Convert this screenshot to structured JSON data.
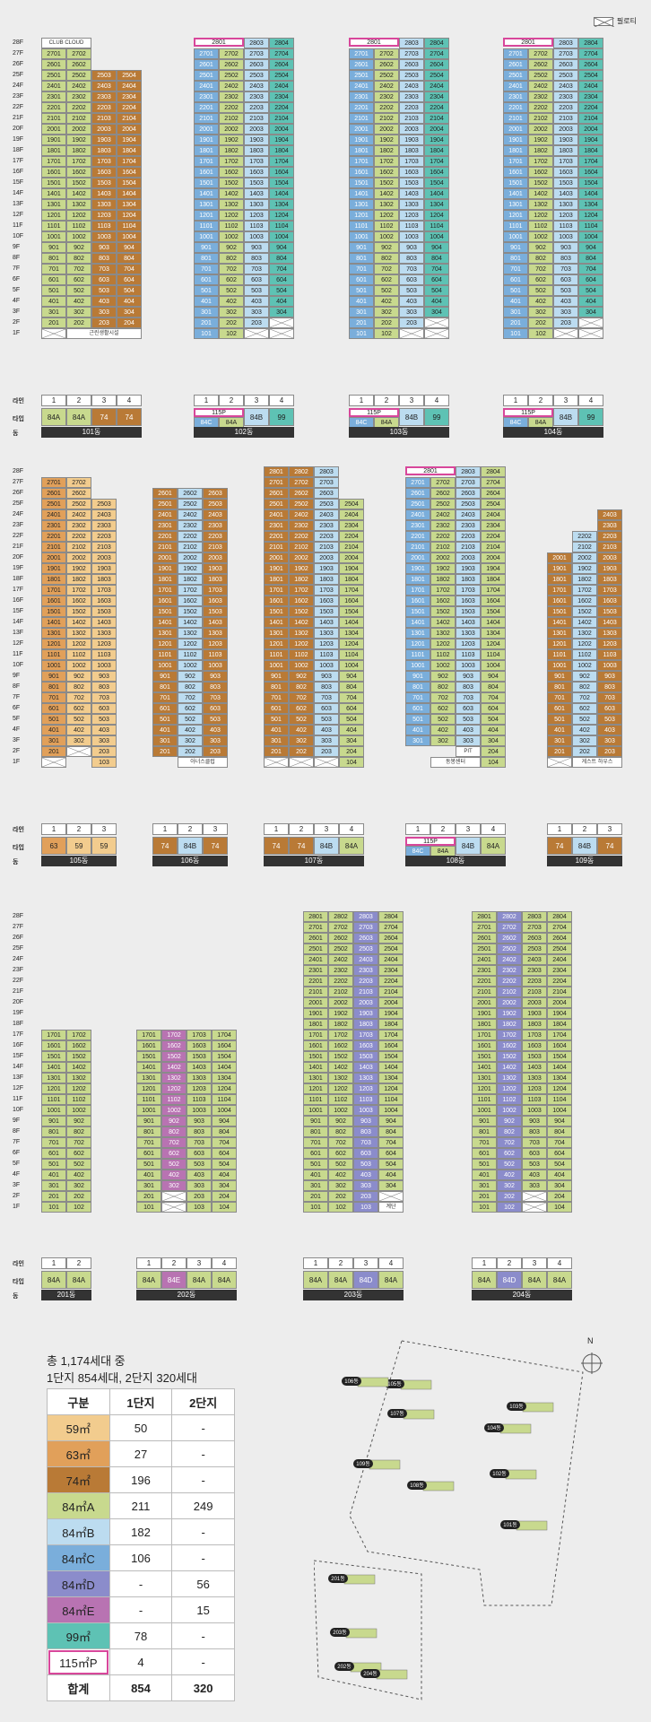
{
  "legend": {
    "pilotis": "필로티"
  },
  "colors": {
    "59": "#f2cc8e",
    "63": "#e1a05a",
    "74": "#b97a36",
    "84A": "#c8d98e",
    "84B": "#bcdcf0",
    "84C": "#7aaedb",
    "84D": "#8b8ccb",
    "84E": "#b873b2",
    "99": "#5ec2b4",
    "115P": "#d8479b"
  },
  "labels": {
    "line": "라인",
    "type": "타입",
    "dong": "동",
    "floor_suffix": "F"
  },
  "phase1_top": [
    {
      "dong": "101동",
      "lines": [
        "1",
        "2",
        "3",
        "4"
      ],
      "types": [
        "84A",
        "84A",
        "74",
        "74"
      ],
      "top": 28
    },
    {
      "dong": "102동",
      "lines": [
        "1",
        "2",
        "3",
        "4"
      ],
      "types": [
        "84C",
        "84A",
        "84B",
        "99"
      ],
      "special": "115P",
      "top": 28
    },
    {
      "dong": "103동",
      "lines": [
        "1",
        "2",
        "3",
        "4"
      ],
      "types": [
        "84C",
        "84A",
        "84B",
        "99"
      ],
      "special": "115P",
      "top": 28
    },
    {
      "dong": "104동",
      "lines": [
        "1",
        "2",
        "3",
        "4"
      ],
      "types": [
        "84C",
        "84A",
        "84B",
        "99"
      ],
      "special": "115P",
      "top": 28
    }
  ],
  "phase1_mid": [
    {
      "dong": "105동",
      "lines": [
        "1",
        "2",
        "3"
      ],
      "types": [
        "63",
        "59",
        "59"
      ]
    },
    {
      "dong": "106동",
      "lines": [
        "1",
        "2",
        "3"
      ],
      "types": [
        "74",
        "84B",
        "74"
      ]
    },
    {
      "dong": "107동",
      "lines": [
        "1",
        "2",
        "3",
        "4"
      ],
      "types": [
        "74",
        "74",
        "84B",
        "84A"
      ]
    },
    {
      "dong": "108동",
      "lines": [
        "1",
        "2",
        "3",
        "4"
      ],
      "types": [
        "84C",
        "84A",
        "84B",
        "84A"
      ],
      "special": "115P"
    },
    {
      "dong": "109동",
      "lines": [
        "1",
        "2",
        "3"
      ],
      "types": [
        "74",
        "84B",
        "74"
      ]
    }
  ],
  "phase2": [
    {
      "dong": "201동",
      "lines": [
        "1",
        "2"
      ],
      "types": [
        "84A",
        "84A"
      ]
    },
    {
      "dong": "202동",
      "lines": [
        "1",
        "2",
        "3",
        "4"
      ],
      "types": [
        "84A",
        "84E",
        "84A",
        "84A"
      ]
    },
    {
      "dong": "203동",
      "lines": [
        "1",
        "2",
        "3",
        "4"
      ],
      "types": [
        "84A",
        "84A",
        "84D",
        "84A"
      ]
    },
    {
      "dong": "204동",
      "lines": [
        "1",
        "2",
        "3",
        "4"
      ],
      "types": [
        "84A",
        "84D",
        "84A",
        "84A"
      ]
    }
  ],
  "special_units": {
    "b101": "CLUB CLOUD",
    "b101_2f": "근린생활시설",
    "b106": "아너스클럽",
    "b108_pit": "PIT",
    "b108_gym": "동봉센터",
    "b109": "게스트 하우스",
    "b203": "계단"
  },
  "summary": {
    "line1": "총 1,174세대 중",
    "line2": "1단지 854세대, 2단지 320세대"
  },
  "table": {
    "headers": [
      "구분",
      "1단지",
      "2단지"
    ],
    "rows": [
      {
        "type": "59㎡",
        "c1": "50",
        "c2": "-",
        "color": "#f2cc8e"
      },
      {
        "type": "63㎡",
        "c1": "27",
        "c2": "-",
        "color": "#e1a05a"
      },
      {
        "type": "74㎡",
        "c1": "196",
        "c2": "-",
        "color": "#b97a36"
      },
      {
        "type": "84㎡A",
        "c1": "211",
        "c2": "249",
        "color": "#c8d98e"
      },
      {
        "type": "84㎡B",
        "c1": "182",
        "c2": "-",
        "color": "#bcdcf0"
      },
      {
        "type": "84㎡C",
        "c1": "106",
        "c2": "-",
        "color": "#7aaedb"
      },
      {
        "type": "84㎡D",
        "c1": "-",
        "c2": "56",
        "color": "#8b8ccb"
      },
      {
        "type": "84㎡E",
        "c1": "-",
        "c2": "15",
        "color": "#b873b2"
      },
      {
        "type": "99㎡",
        "c1": "78",
        "c2": "-",
        "color": "#5ec2b4"
      },
      {
        "type": "115㎡P",
        "c1": "4",
        "c2": "-",
        "color": "#ffffff"
      }
    ],
    "total": {
      "label": "합계",
      "c1": "854",
      "c2": "320"
    }
  },
  "map": {
    "north": "N",
    "dongs": [
      "101동",
      "102동",
      "103동",
      "104동",
      "105동",
      "106동",
      "107동",
      "108동",
      "109동",
      "201동",
      "202동",
      "203동",
      "204동"
    ]
  }
}
